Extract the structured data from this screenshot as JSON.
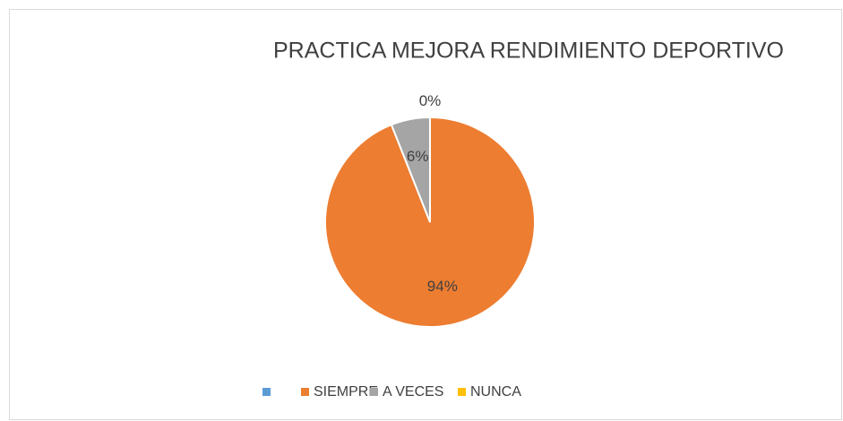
{
  "chart_data": {
    "type": "pie",
    "title": "PRACTICA MEJORA RENDIMIENTO DEPORTIVO",
    "categories": [
      null,
      "SIEMPRE",
      "A VECES",
      "NUNCA"
    ],
    "values": [
      null,
      94,
      6,
      0
    ],
    "value_labels": [
      null,
      "94%",
      "6%",
      "0%"
    ],
    "colors": [
      "#5b9bd5",
      "#ed7d31",
      "#a5a5a5",
      "#ffc000"
    ],
    "legend": "bottom"
  }
}
